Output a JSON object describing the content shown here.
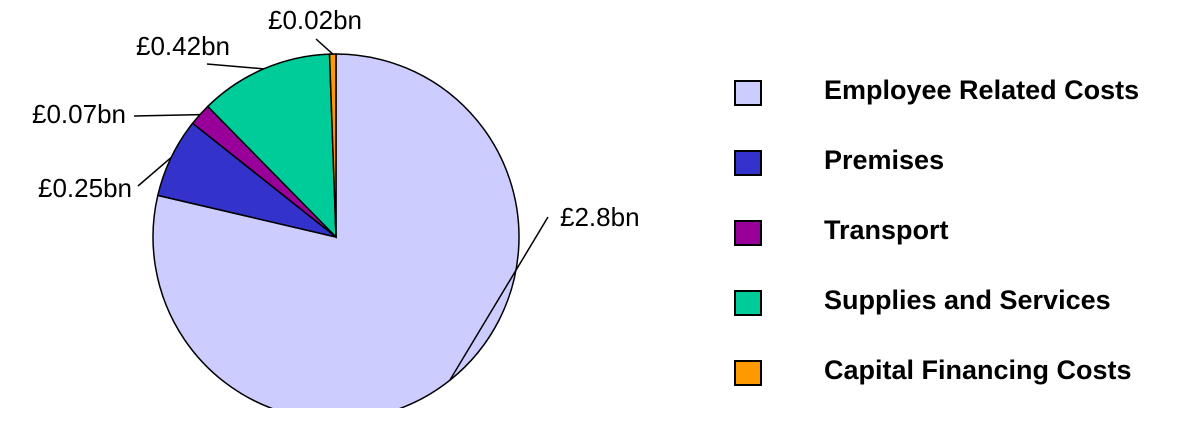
{
  "chart_data": {
    "type": "pie",
    "title": "",
    "slices": [
      {
        "label": "Employee Related Costs",
        "value": 2.8,
        "value_label": "£2.8bn",
        "color": "#ccccff"
      },
      {
        "label": "Premises",
        "value": 0.25,
        "value_label": "£0.25bn",
        "color": "#3333cc"
      },
      {
        "label": "Transport",
        "value": 0.07,
        "value_label": "£0.07bn",
        "color": "#990099"
      },
      {
        "label": "Supplies and Services",
        "value": 0.42,
        "value_label": "£0.42bn",
        "color": "#00cc99"
      },
      {
        "label": "Capital Financing Costs",
        "value": 0.02,
        "value_label": "£0.02bn",
        "color": "#ff9900"
      }
    ],
    "start_angle": "12 o'clock",
    "direction": "clockwise",
    "legend_position": "right"
  }
}
